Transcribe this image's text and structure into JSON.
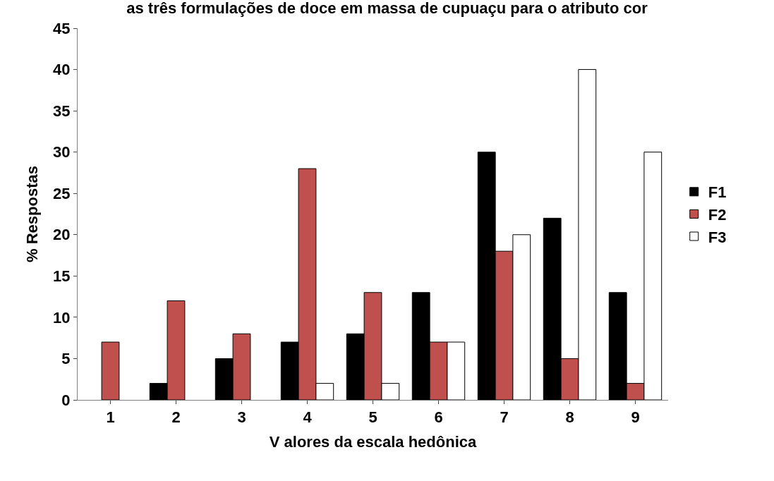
{
  "chart_data": {
    "type": "bar",
    "title": "as três formulações de doce em massa de cupuaçu para o atributo cor",
    "xlabel": "V alores da escala hedônica",
    "ylabel": "% Respostas",
    "categories": [
      "1",
      "2",
      "3",
      "4",
      "5",
      "6",
      "7",
      "8",
      "9"
    ],
    "series": [
      {
        "name": "F1",
        "color": "#000000",
        "values": [
          0,
          2,
          5,
          7,
          8,
          13,
          30,
          22,
          13
        ]
      },
      {
        "name": "F2",
        "color": "#c0504d",
        "values": [
          7,
          12,
          8,
          28,
          13,
          7,
          18,
          5,
          2
        ]
      },
      {
        "name": "F3",
        "color": "#ffffff",
        "values": [
          0,
          0,
          0,
          2,
          2,
          7,
          20,
          40,
          30
        ]
      }
    ],
    "ylim": [
      0,
      45
    ],
    "yticks": [
      0,
      5,
      10,
      15,
      20,
      25,
      30,
      35,
      40,
      45
    ],
    "legend": "right"
  }
}
